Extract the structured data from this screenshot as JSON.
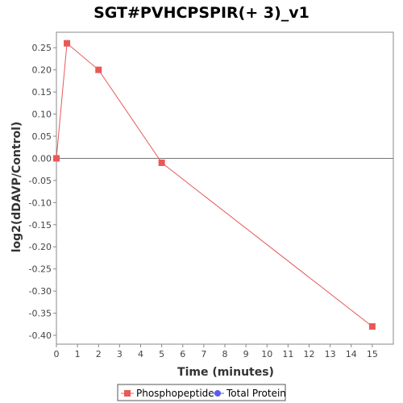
{
  "chart_data": {
    "type": "line",
    "title": "SGT#PVHCPSPIR(+ 3)_v1",
    "xlabel": "Time (minutes)",
    "ylabel": "log2(dDAVP/Control)",
    "xlim": [
      0,
      16
    ],
    "ylim": [
      -0.42,
      0.285
    ],
    "x_ticks": [
      0,
      1,
      2,
      3,
      4,
      5,
      6,
      7,
      8,
      9,
      10,
      11,
      12,
      13,
      14,
      15
    ],
    "y_ticks": [
      0.25,
      0.2,
      0.15,
      0.1,
      0.05,
      0.0,
      -0.05,
      -0.1,
      -0.15,
      -0.2,
      -0.25,
      -0.3,
      -0.35,
      -0.4
    ],
    "y_tick_labels": [
      "0.25",
      "0.20",
      "0.15",
      "0.10",
      "0.05",
      "0.00",
      "-0.05",
      "-0.10",
      "-0.15",
      "-0.20",
      "-0.25",
      "-0.30",
      "-0.35",
      "-0.40"
    ],
    "zero_line": true,
    "grid": false,
    "series": [
      {
        "name": "Phosphopeptide",
        "color": "#e8595a",
        "marker": "square",
        "x": [
          0,
          0.5,
          2,
          5,
          15
        ],
        "y": [
          0.0,
          0.26,
          0.2,
          -0.01,
          -0.38
        ]
      }
    ],
    "legend": {
      "placement": "bottom",
      "entries": [
        {
          "label": "Phosphopeptide",
          "color": "#e8595a",
          "marker": "square"
        },
        {
          "label": "Total Protein",
          "color": "#5b5bf0",
          "marker": "circle"
        }
      ]
    }
  }
}
